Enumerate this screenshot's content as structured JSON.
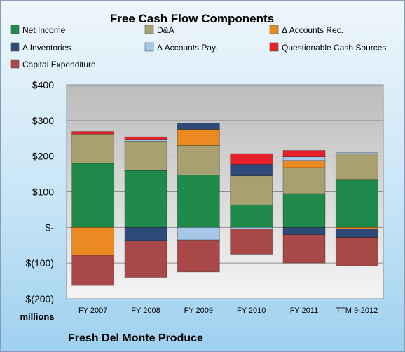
{
  "chart_data": {
    "type": "bar",
    "stacked": true,
    "title": "Free Cash Flow Components",
    "subtitle": "Fresh Del Monte Produce",
    "ylabel": "millions",
    "categories": [
      "FY 2007",
      "FY 2008",
      "FY 2009",
      "FY 2010",
      "FY 2011",
      "TTM 9-2012"
    ],
    "ylim": [
      -200,
      400
    ],
    "yticks": [
      {
        "value": 400,
        "label": "$400"
      },
      {
        "value": 300,
        "label": "$300"
      },
      {
        "value": 200,
        "label": "$200"
      },
      {
        "value": 100,
        "label": "$100"
      },
      {
        "value": 0,
        "label": "$-"
      },
      {
        "value": -100,
        "label": "$(100)"
      },
      {
        "value": -200,
        "label": "$(200)"
      }
    ],
    "grid": true,
    "legend_position": "top",
    "series": [
      {
        "name": "Net Income",
        "color": "#1f8a4a",
        "values": [
          180,
          160,
          147,
          63,
          95,
          135
        ]
      },
      {
        "name": "D&A",
        "color": "#a8a070",
        "values": [
          82,
          82,
          83,
          82,
          73,
          72
        ]
      },
      {
        "name": "Δ Accounts Rec.",
        "color": "#ec8a22",
        "values": [
          -78,
          0,
          45,
          0,
          20,
          -5
        ]
      },
      {
        "name": "Δ Inventories",
        "color": "#2e4a78",
        "values": [
          0,
          -37,
          18,
          32,
          -20,
          -23
        ]
      },
      {
        "name": "Δ Accounts Pay.",
        "color": "#a6c8e8",
        "values": [
          0,
          5,
          -35,
          -5,
          10,
          3
        ]
      },
      {
        "name": "Questionable Cash Sources",
        "color": "#e8202a",
        "values": [
          7,
          7,
          0,
          30,
          18,
          0
        ]
      },
      {
        "name": "Capital Expenditure",
        "color": "#a84848",
        "values": [
          -85,
          -103,
          -90,
          -70,
          -80,
          -80
        ]
      }
    ]
  }
}
